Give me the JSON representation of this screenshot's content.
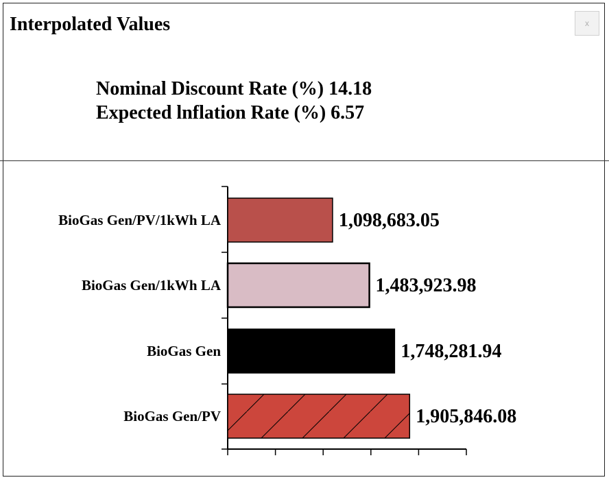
{
  "dialog": {
    "title": "Interpolated Values",
    "close_label": "x"
  },
  "rates": {
    "nominal": "Nominal Discount Rate (%) 14.18",
    "inflation": "Expected lnflation Rate (%) 6.57"
  },
  "chart_data": {
    "type": "bar",
    "orientation": "horizontal",
    "categories": [
      "BioGas Gen/PV/1kWh LA",
      "BioGas Gen/1kWh LA",
      "BioGas Gen",
      "BioGas Gen/PV"
    ],
    "values": [
      1098683.05,
      1483923.98,
      1748281.94,
      1905846.08
    ],
    "value_labels": [
      "1,098,683.05",
      "1,483,923.98",
      "1,748,281.94",
      "1,905,846.08"
    ],
    "bar_colors": [
      "#b9504b",
      "#d9bcc5",
      "#000000",
      "#cc463c"
    ],
    "bar_patterns": [
      "none",
      "none",
      "none",
      "diagonal-hatch"
    ],
    "xlim": [
      0,
      2500000
    ],
    "grid": false
  }
}
